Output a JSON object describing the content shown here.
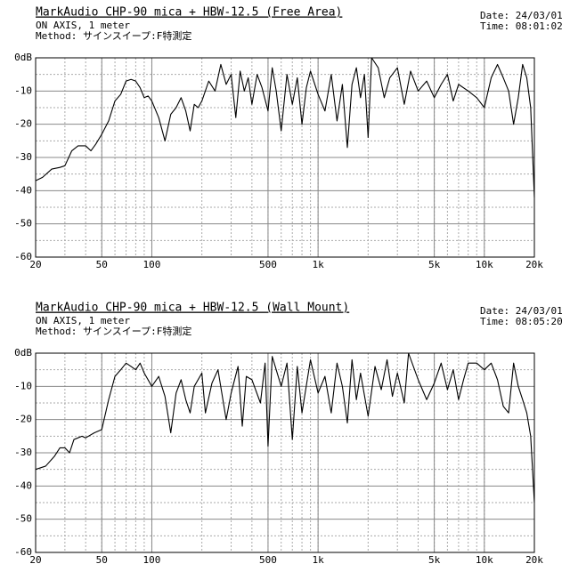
{
  "chart_data": [
    {
      "type": "line",
      "title": "MarkAudio CHP-90 mica + HBW-12.5 (Free Area)",
      "subtitle": [
        "ON AXIS, 1 meter",
        "Method: サインスイープ:F特測定"
      ],
      "date": "Date: 24/03/01",
      "time": "Time: 08:01:02",
      "xscale": "log",
      "grid": true,
      "color": "#000000",
      "xlim": [
        20,
        20000
      ],
      "ylim": [
        -60,
        0
      ],
      "xticks": [
        20,
        50,
        100,
        500,
        {
          "value": 1000,
          "label": "1k"
        },
        {
          "value": 5000,
          "label": "5k"
        },
        {
          "value": 10000,
          "label": "10k"
        },
        {
          "value": 20000,
          "label": "20k"
        }
      ],
      "yticks": [
        {
          "value": 0,
          "label": "0dB"
        },
        -10,
        -20,
        -30,
        -40,
        -50,
        -60
      ],
      "x": [
        20,
        22,
        25,
        28,
        30,
        33,
        36,
        40,
        43,
        46,
        50,
        55,
        60,
        65,
        70,
        75,
        80,
        85,
        90,
        95,
        100,
        110,
        120,
        130,
        140,
        150,
        160,
        170,
        180,
        190,
        200,
        220,
        240,
        260,
        280,
        300,
        320,
        340,
        360,
        380,
        400,
        430,
        460,
        500,
        530,
        560,
        600,
        650,
        700,
        750,
        800,
        850,
        900,
        1000,
        1100,
        1200,
        1300,
        1400,
        1500,
        1600,
        1700,
        1800,
        1900,
        2000,
        2100,
        2300,
        2500,
        2700,
        3000,
        3300,
        3600,
        4000,
        4500,
        5000,
        5500,
        6000,
        6500,
        7000,
        8000,
        9000,
        10000,
        11000,
        12000,
        13000,
        14000,
        15000,
        16000,
        17000,
        18000,
        19000,
        20000
      ],
      "values": [
        -37,
        -36,
        -33.5,
        -33,
        -32.5,
        -28,
        -26.5,
        -26.5,
        -28,
        -26,
        -23,
        -19,
        -13,
        -11,
        -7,
        -6.5,
        -7,
        -9,
        -12,
        -11.5,
        -13,
        -18,
        -25,
        -17,
        -15,
        -12,
        -16,
        -22,
        -14,
        -15,
        -13,
        -7,
        -10,
        -2,
        -8,
        -5,
        -18,
        -4,
        -10,
        -6,
        -14,
        -5,
        -9,
        -16,
        -3,
        -10,
        -22,
        -5,
        -14,
        -6,
        -20,
        -9,
        -4,
        -11,
        -16,
        -5,
        -19,
        -8,
        -27,
        -8,
        -3,
        -12,
        -5,
        -24,
        0,
        -3,
        -12,
        -6,
        -3,
        -14,
        -4,
        -10,
        -7,
        -12,
        -8,
        -5,
        -13,
        -8,
        -10,
        -12,
        -15,
        -6,
        -2,
        -6,
        -10,
        -20,
        -12,
        -2,
        -6,
        -15,
        -42
      ]
    },
    {
      "type": "line",
      "title": "MarkAudio CHP-90 mica + HBW-12.5 (Wall Mount)",
      "subtitle": [
        "ON AXIS, 1 meter",
        "Method: サインスイープ:F特測定"
      ],
      "date": "Date: 24/03/01",
      "time": "Time: 08:05:20",
      "xscale": "log",
      "grid": true,
      "color": "#000000",
      "xlim": [
        20,
        20000
      ],
      "ylim": [
        -60,
        0
      ],
      "xticks": [
        20,
        50,
        100,
        500,
        {
          "value": 1000,
          "label": "1k"
        },
        {
          "value": 5000,
          "label": "5k"
        },
        {
          "value": 10000,
          "label": "10k"
        },
        {
          "value": 20000,
          "label": "20k"
        }
      ],
      "yticks": [
        {
          "value": 0,
          "label": "0dB"
        },
        -10,
        -20,
        -30,
        -40,
        -50,
        -60
      ],
      "x": [
        20,
        23,
        26,
        28,
        30,
        32,
        34,
        38,
        40,
        45,
        50,
        55,
        60,
        65,
        70,
        75,
        80,
        85,
        90,
        100,
        110,
        120,
        130,
        140,
        150,
        160,
        170,
        180,
        200,
        210,
        230,
        250,
        280,
        300,
        330,
        350,
        370,
        400,
        450,
        480,
        500,
        530,
        560,
        600,
        650,
        700,
        750,
        800,
        900,
        1000,
        1100,
        1200,
        1300,
        1400,
        1500,
        1600,
        1700,
        1800,
        2000,
        2200,
        2400,
        2600,
        2800,
        3000,
        3300,
        3500,
        4000,
        4500,
        5000,
        5500,
        6000,
        6500,
        7000,
        7500,
        8000,
        9000,
        10000,
        11000,
        12000,
        13000,
        14000,
        15000,
        16000,
        17000,
        18000,
        19000,
        20000
      ],
      "values": [
        -35,
        -34,
        -31,
        -28.5,
        -28.5,
        -30,
        -26,
        -25,
        -25.5,
        -24,
        -23,
        -14,
        -7,
        -5,
        -3,
        -4,
        -5,
        -3,
        -6,
        -10,
        -7,
        -13,
        -24,
        -12,
        -8,
        -14,
        -18,
        -10,
        -6,
        -18,
        -9,
        -5,
        -20,
        -12,
        -4,
        -22,
        -7,
        -8,
        -15,
        -3,
        -28,
        -1,
        -5,
        -10,
        -3,
        -26,
        -4,
        -18,
        -2,
        -12,
        -7,
        -18,
        -3,
        -10,
        -21,
        -2,
        -14,
        -6,
        -19,
        -4,
        -11,
        -2,
        -13,
        -6,
        -15,
        0,
        -8,
        -14,
        -9,
        -3,
        -11,
        -5,
        -14,
        -8,
        -3,
        -3,
        -5,
        -3,
        -8,
        -16,
        -18,
        -3,
        -10,
        -14,
        -18,
        -25,
        -45
      ]
    }
  ]
}
